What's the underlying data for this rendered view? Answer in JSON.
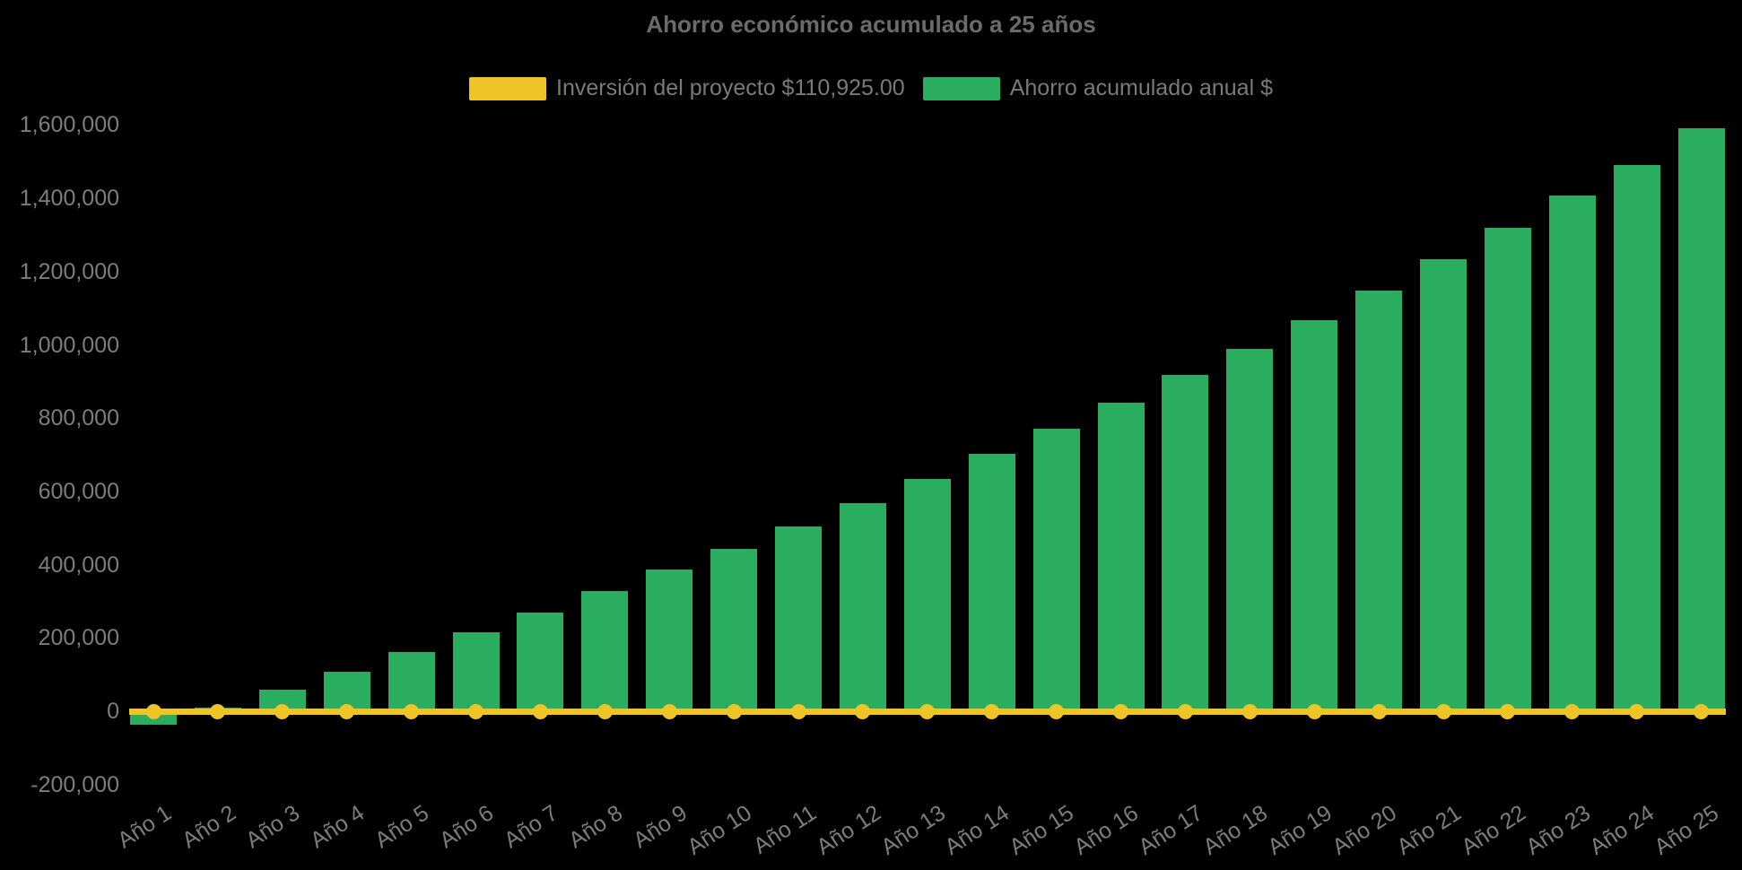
{
  "title": "Ahorro económico acumulado a 25 años",
  "legend": {
    "items": [
      {
        "label": "Inversión del proyecto $110,925.00",
        "color": "#EFC426",
        "series": "line"
      },
      {
        "label": "Ahorro acumulado anual $",
        "color": "#2BAD5F",
        "series": "bar"
      }
    ]
  },
  "colors": {
    "background": "#000000",
    "bar_green": "#2BAD5F",
    "line_yellow": "#EFC426",
    "text_gray": "#7d7d7d",
    "title_gray": "#6b6b6b"
  },
  "chart_data": {
    "type": "bar",
    "title": "Ahorro económico acumulado a 25 años",
    "categories": [
      "Año 1",
      "Año 2",
      "Año 3",
      "Año 4",
      "Año 5",
      "Año 6",
      "Año 7",
      "Año 8",
      "Año 9",
      "Año 10",
      "Año 11",
      "Año 12",
      "Año 13",
      "Año 14",
      "Año 15",
      "Año 16",
      "Año 17",
      "Año 18",
      "Año 19",
      "Año 20",
      "Año 21",
      "Año 22",
      "Año 23",
      "Año 24",
      "Año 25"
    ],
    "series": [
      {
        "name": "Ahorro acumulado anual $",
        "type": "bar",
        "color": "#2BAD5F",
        "values": [
          -37000,
          11000,
          58000,
          108000,
          162000,
          216000,
          269000,
          327000,
          386000,
          443000,
          504000,
          569000,
          634000,
          702000,
          771000,
          843000,
          918000,
          989000,
          1068000,
          1148000,
          1234000,
          1320000,
          1407000,
          1492000,
          1591000
        ]
      },
      {
        "name": "Inversión del proyecto $110,925.00",
        "type": "line",
        "color": "#EFC426",
        "investment_amount_shown_in_label": 110925.0,
        "plotted_at_value": 0,
        "values": [
          0,
          0,
          0,
          0,
          0,
          0,
          0,
          0,
          0,
          0,
          0,
          0,
          0,
          0,
          0,
          0,
          0,
          0,
          0,
          0,
          0,
          0,
          0,
          0,
          0
        ]
      }
    ],
    "y_axis": {
      "min": -200000,
      "max": 1600000,
      "tick_step": 200000,
      "ticks": [
        {
          "value": -200000,
          "label": "-200,000"
        },
        {
          "value": 0,
          "label": "0"
        },
        {
          "value": 200000,
          "label": "200,000"
        },
        {
          "value": 400000,
          "label": "400,000"
        },
        {
          "value": 600000,
          "label": "600,000"
        },
        {
          "value": 800000,
          "label": "800,000"
        },
        {
          "value": 1000000,
          "label": "1,000,000"
        },
        {
          "value": 1200000,
          "label": "1,200,000"
        },
        {
          "value": 1400000,
          "label": "1,400,000"
        },
        {
          "value": 1600000,
          "label": "1,600,000"
        }
      ]
    },
    "x_axis": {
      "tick_labels_rotated": true
    },
    "grid": false,
    "legend_position": "top"
  }
}
